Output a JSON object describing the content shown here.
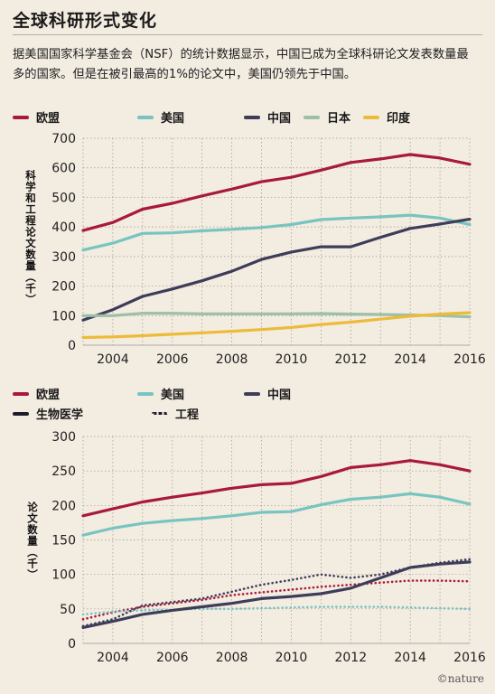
{
  "header": {
    "title": "全球科研形式变化",
    "intro": "据美国国家科学基金会（NSF）的统计数据显示，中国已成为全球科研论文发表数量最多的国家。但是在被引最高的1%的论文中，美国仍领先于中国。"
  },
  "credit": "©nature",
  "colors": {
    "eu": "#a8193a",
    "us": "#78c4c0",
    "china": "#3d3d5a",
    "japan": "#9cbfa6",
    "india": "#edbb3a",
    "bio": "#1e1e2a"
  },
  "chart_data": [
    {
      "type": "line",
      "title": "",
      "ylabel": "科学和工程论文数量（千）",
      "xlabel": "",
      "ylim": [
        0,
        700
      ],
      "yticks": [
        "0",
        "100",
        "200",
        "300",
        "400",
        "500",
        "600",
        "700"
      ],
      "xlim": [
        2003,
        2016
      ],
      "xticks": [
        "2004",
        "2006",
        "2008",
        "2010",
        "2012",
        "2014",
        "2016"
      ],
      "grid": true,
      "legend_position": "top",
      "x": [
        2003,
        2004,
        2005,
        2006,
        2007,
        2008,
        2009,
        2010,
        2011,
        2012,
        2013,
        2014,
        2015,
        2016
      ],
      "series": [
        {
          "name": "欧盟",
          "color_key": "eu",
          "style": "solid",
          "values": [
            388,
            415,
            460,
            480,
            505,
            528,
            553,
            568,
            592,
            618,
            630,
            645,
            633,
            612
          ]
        },
        {
          "name": "美国",
          "color_key": "us",
          "style": "solid",
          "values": [
            322,
            345,
            378,
            380,
            387,
            392,
            398,
            408,
            425,
            430,
            434,
            440,
            430,
            408
          ]
        },
        {
          "name": "中国",
          "color_key": "china",
          "style": "solid",
          "values": [
            85,
            120,
            165,
            190,
            218,
            250,
            290,
            315,
            333,
            333,
            365,
            395,
            410,
            426
          ]
        },
        {
          "name": "日本",
          "color_key": "japan",
          "style": "solid",
          "values": [
            100,
            100,
            108,
            108,
            106,
            106,
            106,
            106,
            107,
            105,
            104,
            102,
            100,
            96
          ]
        },
        {
          "name": "印度",
          "color_key": "india",
          "style": "solid",
          "values": [
            26,
            28,
            32,
            37,
            42,
            47,
            53,
            60,
            70,
            78,
            88,
            98,
            105,
            110
          ]
        }
      ]
    },
    {
      "type": "line",
      "title": "",
      "ylabel": "论文数量（千）",
      "xlabel": "",
      "ylim": [
        0,
        300
      ],
      "yticks": [
        "0",
        "50",
        "100",
        "150",
        "200",
        "250",
        "300"
      ],
      "xlim": [
        2003,
        2016
      ],
      "xticks": [
        "2004",
        "2006",
        "2008",
        "2010",
        "2012",
        "2014",
        "2016"
      ],
      "grid": true,
      "legend_position": "top",
      "legend_extra": [
        {
          "name": "生物医学",
          "style": "solid"
        },
        {
          "name": "工程",
          "style": "dotted"
        }
      ],
      "x": [
        2003,
        2004,
        2005,
        2006,
        2007,
        2008,
        2009,
        2010,
        2011,
        2012,
        2013,
        2014,
        2015,
        2016
      ],
      "series": [
        {
          "name": "欧盟 生物医学",
          "color_key": "eu",
          "style": "solid",
          "values": [
            185,
            195,
            205,
            212,
            218,
            225,
            230,
            232,
            242,
            255,
            259,
            265,
            259,
            250
          ]
        },
        {
          "name": "美国 生物医学",
          "color_key": "us",
          "style": "solid",
          "values": [
            157,
            167,
            174,
            178,
            181,
            185,
            190,
            191,
            201,
            209,
            212,
            217,
            212,
            202
          ]
        },
        {
          "name": "中国 生物医学",
          "color_key": "china",
          "style": "solid",
          "values": [
            23,
            32,
            42,
            48,
            53,
            58,
            65,
            68,
            72,
            80,
            95,
            110,
            115,
            118
          ]
        },
        {
          "name": "欧盟 工程",
          "color_key": "eu",
          "style": "dotted",
          "values": [
            35,
            45,
            53,
            58,
            63,
            70,
            74,
            78,
            82,
            85,
            88,
            91,
            91,
            90
          ]
        },
        {
          "name": "美国 工程",
          "color_key": "us",
          "style": "dotted",
          "values": [
            42,
            46,
            48,
            49,
            50,
            50,
            51,
            52,
            53,
            53,
            53,
            52,
            51,
            50
          ]
        },
        {
          "name": "中国 工程",
          "color_key": "china",
          "style": "dotted",
          "values": [
            25,
            35,
            55,
            60,
            65,
            75,
            85,
            92,
            100,
            95,
            100,
            110,
            117,
            122
          ]
        }
      ]
    }
  ]
}
